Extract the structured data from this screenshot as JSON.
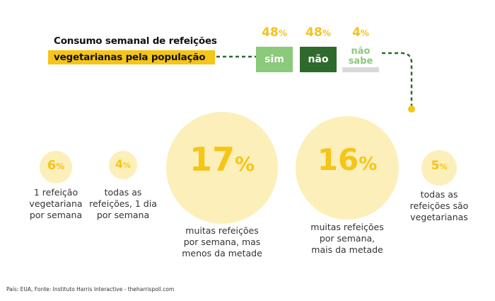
{
  "title": {
    "line1": "Consumo semanal de refeições",
    "line2": "vegetarianas pela população"
  },
  "chart_data": [
    {
      "type": "bar",
      "title": "Consumo semanal de refeições vegetarianas pela população",
      "categories": [
        "sim",
        "não",
        "não sabe"
      ],
      "values": [
        48,
        48,
        4
      ],
      "unit": "%",
      "colors": [
        "#8bc97b",
        "#2e6a2c",
        "#d9d9d9"
      ]
    },
    {
      "type": "bubble",
      "categories": [
        "1 refeição vegetariana por semana",
        "todas as refeições, 1 dia por semana",
        "muitas refeições por semana, mas menos da metade",
        "muitas refeições por semana, mais da metade",
        "todas as refeições são vegetarianas"
      ],
      "values": [
        6,
        4,
        17,
        16,
        5
      ],
      "unit": "%"
    }
  ],
  "answers": [
    {
      "pct": "48",
      "label": "sim"
    },
    {
      "pct": "48",
      "label": "não"
    },
    {
      "pct": "4",
      "label1": "não",
      "label2": "sabe"
    }
  ],
  "bubbles": [
    {
      "pct": "6",
      "label": [
        "1 refeição",
        "vegetariana",
        "por semana"
      ]
    },
    {
      "pct": "4",
      "label": [
        "todas as",
        "refeições, 1 dia",
        "por semana"
      ]
    },
    {
      "pct": "17",
      "label": [
        "muitas refeições",
        "por semana, mas",
        "menos da metade"
      ]
    },
    {
      "pct": "16",
      "label": [
        "muitas refeições",
        "por semana,",
        "mais da metade"
      ]
    },
    {
      "pct": "5",
      "label": [
        "todas as",
        "refeições são",
        "vegetarianas"
      ]
    }
  ],
  "percent_sign": "%",
  "source": "País: EUA, Fonte: Instituto Harris Interactive - theharrispoll.com",
  "colors": {
    "accent_yellow": "#f5c518",
    "bubble_fill": "#fcefb9",
    "sim_green": "#8bc97b",
    "nao_green": "#2e6a2c",
    "nao_sabe_gray": "#d9d9d9",
    "connector_green": "#2e6a2c"
  }
}
